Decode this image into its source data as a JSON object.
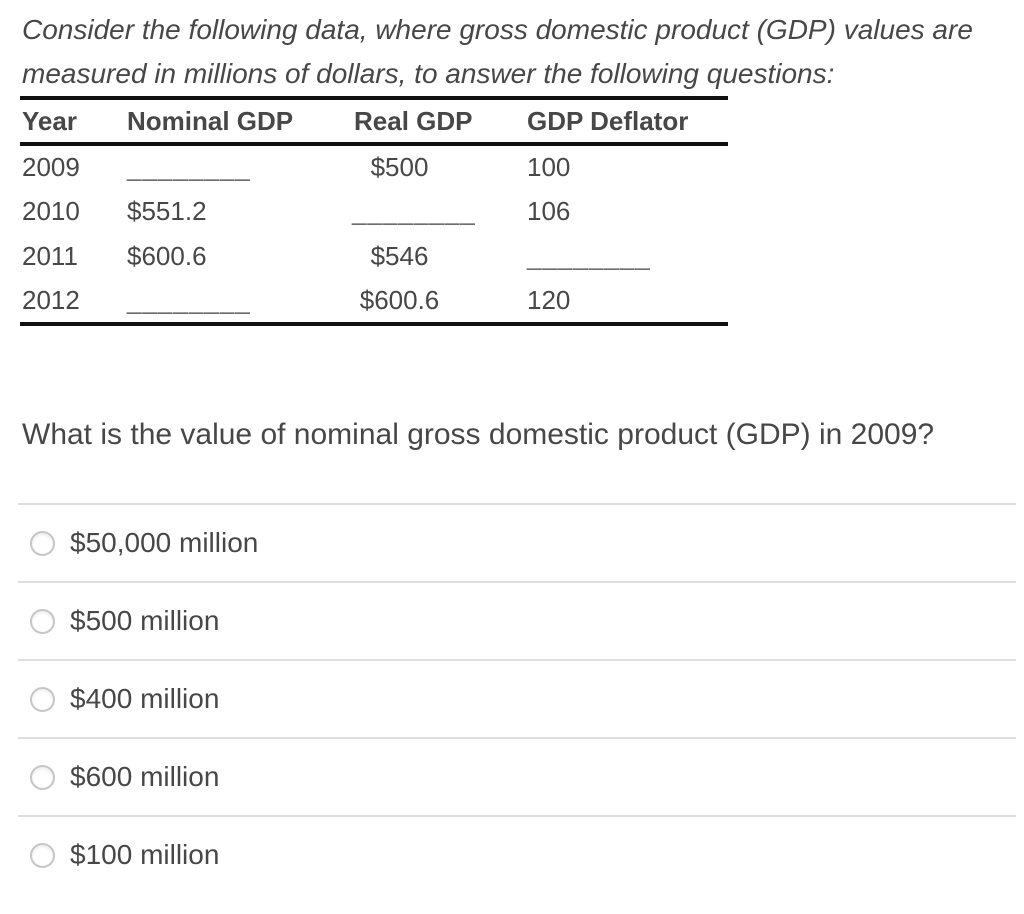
{
  "intro": {
    "line1": "Consider the following data, where gross domestic product (GDP) values are",
    "line2": "measured in millions of dollars, to answer the following questions:"
  },
  "table": {
    "headers": [
      "Year",
      "Nominal GDP",
      "Real GDP",
      "GDP Deflator"
    ],
    "rows": [
      {
        "year": "2009",
        "nominal": "________",
        "real": "$500",
        "deflator": "100"
      },
      {
        "year": "2010",
        "nominal": "$551.2",
        "real": "________",
        "deflator": "106"
      },
      {
        "year": "2011",
        "nominal": "$600.6",
        "real": "$546",
        "deflator": "________"
      },
      {
        "year": "2012",
        "nominal": "________",
        "real": "$600.6",
        "deflator": "120"
      }
    ]
  },
  "question": {
    "text": "What is the value of nominal gross domestic product (GDP) in 2009?"
  },
  "options": [
    "$50,000 million",
    "$500 million",
    "$400 million",
    "$600 million",
    "$100 million"
  ],
  "colors": {
    "text": "#474747",
    "table_border": "#111111",
    "divider": "#dedede",
    "radio_border": "#c6c6c6",
    "background": "#ffffff"
  }
}
